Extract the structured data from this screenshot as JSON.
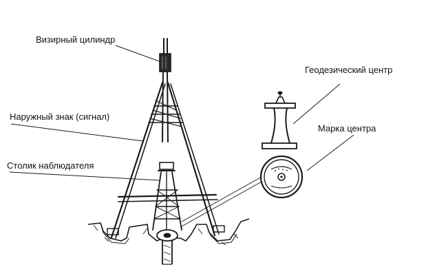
{
  "labels": {
    "sight_cylinder": "Визирный цилиндр",
    "outer_sign": "Наружный знак (сигнал)",
    "observer_table": "Столик наблюдателя",
    "geodetic_center": "Геодезический центр",
    "center_mark": "Марка центра"
  },
  "colors": {
    "ink": "#1a1a1a",
    "paper": "#ffffff"
  }
}
